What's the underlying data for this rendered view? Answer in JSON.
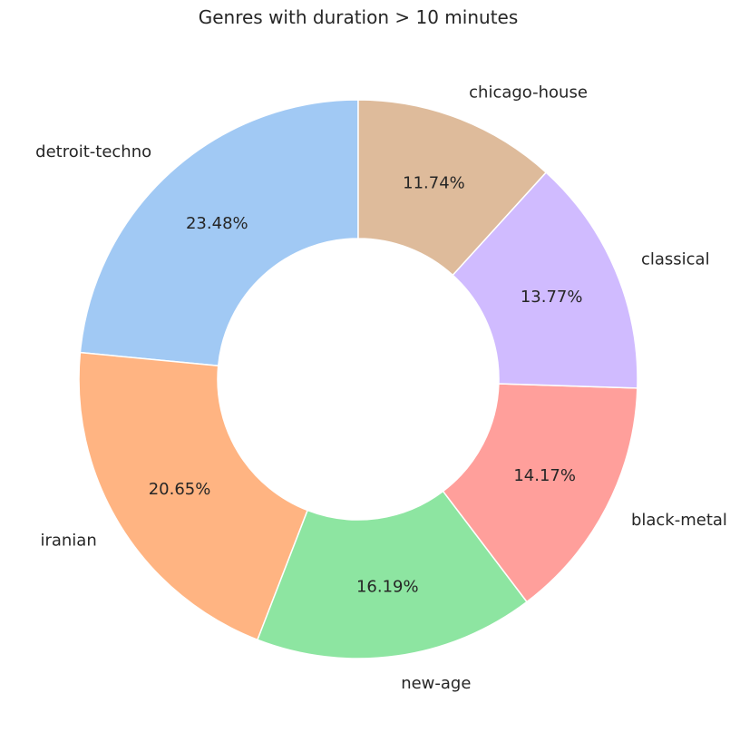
{
  "chart_data": {
    "type": "pie",
    "variant": "donut",
    "title": "Genres with duration > 10 minutes",
    "categories": [
      "detroit-techno",
      "iranian",
      "new-age",
      "black-metal",
      "classical",
      "chicago-house"
    ],
    "values": [
      23.48,
      20.65,
      16.19,
      14.17,
      13.77,
      11.74
    ],
    "value_labels": [
      "23.48%",
      "20.65%",
      "16.19%",
      "14.17%",
      "13.77%",
      "11.74%"
    ],
    "colors": [
      "#a1c9f4",
      "#ffb482",
      "#8de5a1",
      "#ff9f9b",
      "#d0bbff",
      "#debb9b"
    ],
    "start_angle_deg": 90,
    "direction": "counterclockwise",
    "legend": "none"
  }
}
